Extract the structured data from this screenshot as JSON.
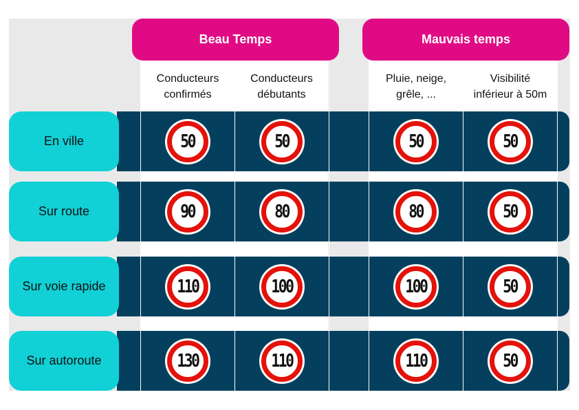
{
  "groups": {
    "good": "Beau Temps",
    "bad": "Mauvais temps"
  },
  "columns": {
    "experienced": "Conducteurs\nconfirmés",
    "novice": "Conducteurs\ndébutants",
    "precip": "Pluie, neige,\ngrêle, ...",
    "visibility": "Visibilité\ninférieur à 50m"
  },
  "rows": [
    {
      "label": "En ville",
      "limits": [
        "50",
        "50",
        "50",
        "50"
      ]
    },
    {
      "label": "Sur route",
      "limits": [
        "90",
        "80",
        "80",
        "50"
      ]
    },
    {
      "label": "Sur voie rapide",
      "limits": [
        "110",
        "100",
        "100",
        "50"
      ]
    },
    {
      "label": "Sur autoroute",
      "limits": [
        "130",
        "110",
        "110",
        "50"
      ]
    }
  ],
  "colors": {
    "header": "#e00b84",
    "row_label": "#11d1d6",
    "row_bar": "#04405d",
    "sign_ring": "#e3120b"
  },
  "icons": {
    "sign": "speed-limit-sign-icon"
  }
}
